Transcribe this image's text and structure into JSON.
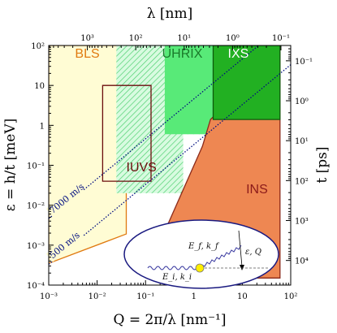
{
  "chart_data": {
    "type": "area",
    "title": "",
    "xlabel": "Q = 2π/λ [nm⁻¹]",
    "ylabel": "ε = h/t [meV]",
    "top_label": "λ [nm]",
    "right_label": "t [ps]",
    "xscale": "log",
    "yscale": "log",
    "xlim": [
      0.001,
      100
    ],
    "ylim": [
      0.0001,
      100
    ],
    "x_ticks": [
      "10⁻³",
      "10⁻²",
      "10⁻¹",
      "1",
      "10",
      "10²"
    ],
    "y_ticks": [
      "10⁻⁴",
      "10⁻³",
      "10⁻²",
      "10⁻¹",
      "1",
      "10",
      "10²"
    ],
    "top_ticks": [
      "10³",
      "10²",
      "10¹",
      "10⁰",
      "10⁻¹"
    ],
    "right_ticks": [
      "10⁻¹",
      "10⁰",
      "10¹",
      "10²",
      "10³",
      "10⁴"
    ],
    "regions": [
      {
        "name": "BLS",
        "color": "#fffcd4",
        "stroke": "#e07a10",
        "label_color": "#e07a10",
        "label_pos": [
          0.0035,
          50
        ],
        "points": [
          [
            0.001,
            100
          ],
          [
            0.04,
            100
          ],
          [
            0.04,
            0.0019
          ],
          [
            0.001,
            0.00035
          ]
        ]
      },
      {
        "name": "UHRIX",
        "color": "#7df09a",
        "hatch": true,
        "label_color": "#1a7a2a",
        "label_pos": [
          0.22,
          50
        ],
        "points": [
          [
            0.025,
            100
          ],
          [
            2.5,
            100
          ],
          [
            2.5,
            0.6
          ],
          [
            0.6,
            0.6
          ],
          [
            0.6,
            0.02
          ],
          [
            0.025,
            0.02
          ]
        ]
      },
      {
        "name": "UHRIX-core",
        "color": "#58ea78",
        "points": [
          [
            0.25,
            100
          ],
          [
            2.5,
            100
          ],
          [
            2.5,
            0.6
          ],
          [
            0.25,
            0.6
          ]
        ]
      },
      {
        "name": "INS",
        "color": "#ee8752",
        "stroke": "#8b2a1a",
        "label_color": "#8b1a1a",
        "label_pos": [
          12,
          0.02
        ],
        "points": [
          [
            60,
            100
          ],
          [
            60,
            0.00015
          ],
          [
            0.22,
            0.00015
          ],
          [
            0.2,
            0.0012
          ],
          [
            1.5,
            0.3
          ],
          [
            2.2,
            1.4
          ],
          [
            10,
            8
          ],
          [
            60,
            100
          ]
        ]
      },
      {
        "name": "IXS",
        "color": "#22b022",
        "stroke": "#0c5a0c",
        "label_color": "#ffffff",
        "label_pos": [
          5,
          50
        ],
        "points": [
          [
            2.5,
            100
          ],
          [
            60,
            100
          ],
          [
            60,
            1.4
          ],
          [
            2.5,
            1.4
          ]
        ]
      },
      {
        "name": "IUVS",
        "color": "none",
        "stroke": "#6b0d0d",
        "label_color": "#6b0d0d",
        "label_pos": [
          0.04,
          0.07
        ],
        "points": [
          [
            0.013,
            10
          ],
          [
            0.13,
            10
          ],
          [
            0.13,
            0.04
          ],
          [
            0.013,
            0.04
          ]
        ]
      }
    ],
    "velocity_lines": [
      {
        "label": "7000 m/s",
        "points": [
          [
            0.001,
            0.0046
          ],
          [
            100,
            460
          ]
        ]
      },
      {
        "label": "500 m/s",
        "points": [
          [
            0.001,
            0.00033
          ],
          [
            100,
            33
          ]
        ]
      }
    ],
    "inset": {
      "scattered_label": "E_f, k_f",
      "incident_label": "E_i, k_i",
      "transfer_label": "ε, Q"
    },
    "colors": {
      "velocity_line": "#000d80",
      "inset_border": "#1a1a80",
      "sample_dot": "#ffee00",
      "wave": "#3a3aa0"
    }
  }
}
